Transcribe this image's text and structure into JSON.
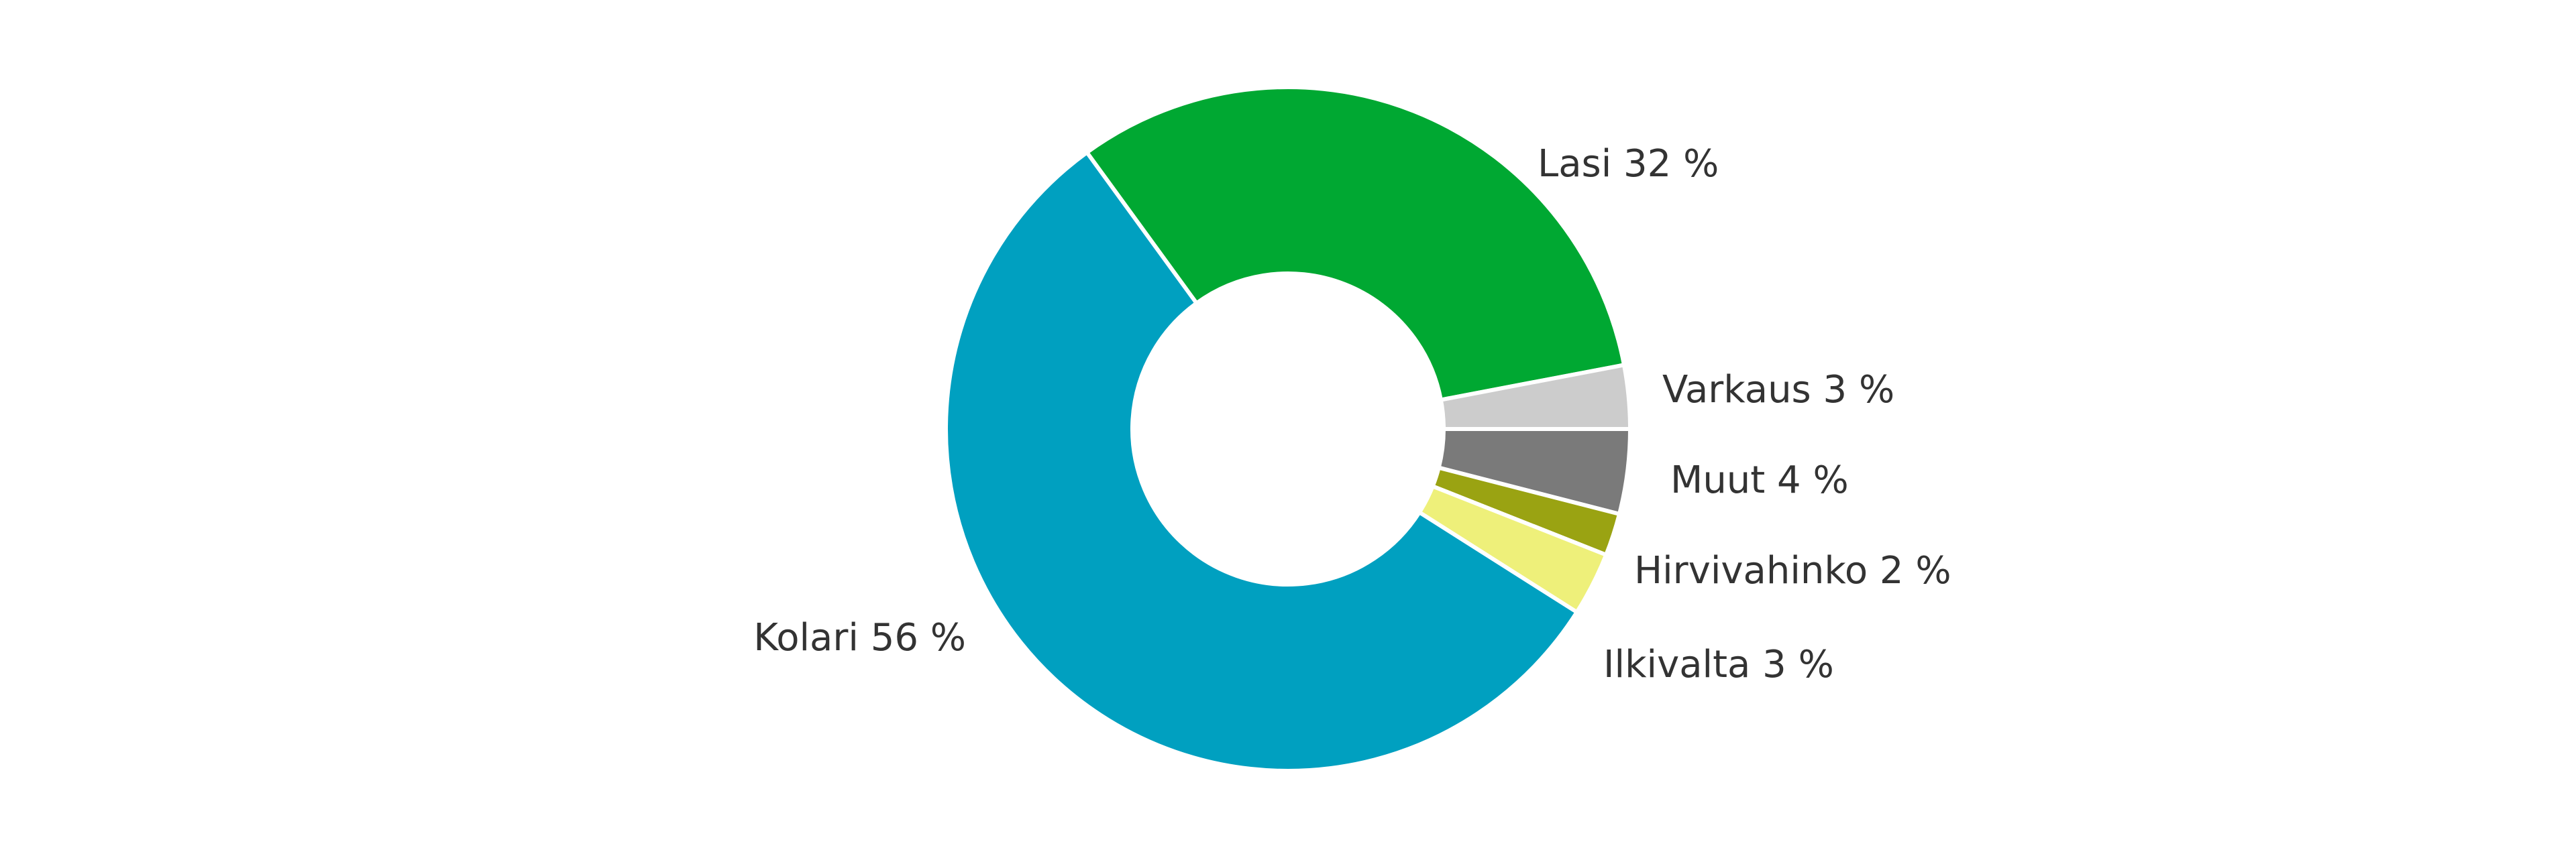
{
  "chart_data": {
    "type": "pie",
    "donut": true,
    "legend": "none",
    "slices": [
      {
        "label": "Lasi 32 %",
        "value": 32,
        "color": "#00a832"
      },
      {
        "label": "Varkaus 3 %",
        "value": 3,
        "color": "#cccccc"
      },
      {
        "label": "Muut 4 %",
        "value": 4,
        "color": "#7a7a7a"
      },
      {
        "label": "Hirvivahinko 2 %",
        "value": 2,
        "color": "#9aa312"
      },
      {
        "label": "Ilkivalta 3 %",
        "value": 3,
        "color": "#eef07a"
      },
      {
        "label": "Kolari 56 %",
        "value": 56,
        "color": "#00a0c0"
      }
    ]
  }
}
